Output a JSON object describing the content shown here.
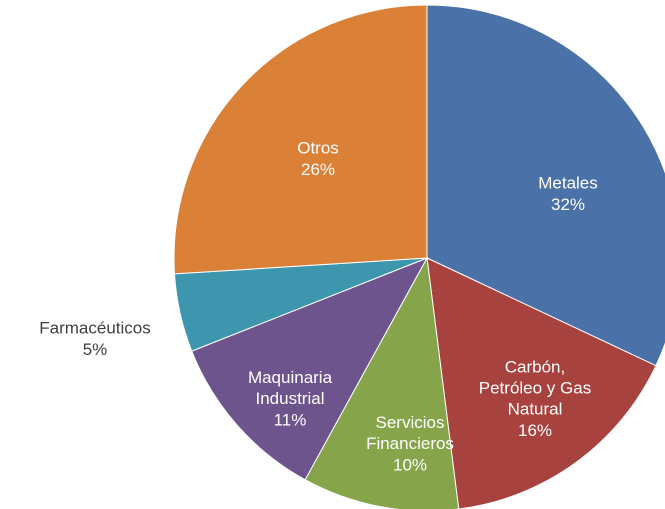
{
  "chart_data": {
    "type": "pie",
    "categories": [
      "Metales",
      "Carbón, Petróleo y Gas Natural",
      "Servicios Financieros",
      "Maquinaria Industrial",
      "Farmacéuticos",
      "Otros"
    ],
    "values": [
      32,
      16,
      10,
      11,
      5,
      26
    ],
    "value_labels": [
      "32%",
      "16%",
      "10%",
      "11%",
      "5%",
      "26%"
    ],
    "colors": [
      "#4a72a8",
      "#a8423f",
      "#86a44a",
      "#6e548d",
      "#3d96ae",
      "#da8137"
    ]
  }
}
